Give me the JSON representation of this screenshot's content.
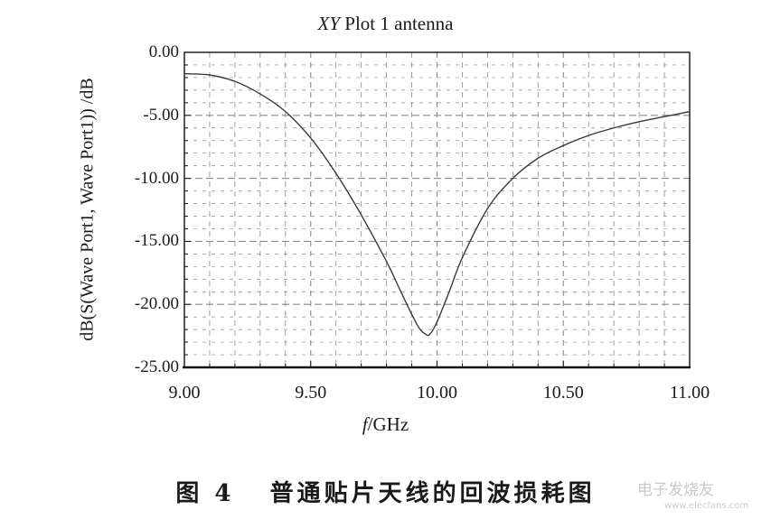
{
  "chart_data": {
    "type": "line",
    "title": "XY Plot 1 antenna",
    "title_italic_prefix": "XY",
    "title_rest": " Plot 1 antenna",
    "xlabel": "f /GHz",
    "xlabel_italic": "f",
    "xlabel_rest": "/GHz",
    "ylabel": "dB(S(Wave Port1, Wave Port1)) /dB",
    "xlim": [
      9.0,
      11.0
    ],
    "ylim": [
      -25.0,
      0.0
    ],
    "x_ticks": [
      "9.00",
      "9.50",
      "10.00",
      "10.50",
      "11.00"
    ],
    "y_ticks": [
      "0.00",
      "-5.00",
      "-10.00",
      "-15.00",
      "-20.00",
      "-25.00"
    ],
    "grid": true,
    "grid_style": "dashed",
    "legend": null,
    "series": [
      {
        "name": "dB(S(Wave Port1,Wave Port1))",
        "x": [
          9.0,
          9.1,
          9.2,
          9.3,
          9.4,
          9.5,
          9.6,
          9.7,
          9.8,
          9.85,
          9.9,
          9.93,
          9.95,
          9.97,
          10.0,
          10.05,
          10.1,
          10.2,
          10.3,
          10.4,
          10.5,
          10.6,
          10.7,
          10.8,
          10.9,
          11.0
        ],
        "values": [
          -1.7,
          -1.8,
          -2.3,
          -3.3,
          -4.7,
          -6.8,
          -9.6,
          -12.9,
          -16.6,
          -18.7,
          -20.8,
          -21.9,
          -22.3,
          -22.4,
          -21.4,
          -18.9,
          -16.3,
          -12.4,
          -10.0,
          -8.4,
          -7.4,
          -6.6,
          -6.0,
          -5.5,
          -5.1,
          -4.7
        ]
      }
    ],
    "annotations": []
  },
  "caption": {
    "label": "图 4",
    "text": "普通贴片天线的回波损耗图"
  },
  "watermark": {
    "text": "电子发烧友",
    "url_text": "www.elecfans.com"
  },
  "colors": {
    "curve": "#3a3a3a",
    "grid": "#8a8a8a",
    "axis": "#111111"
  }
}
